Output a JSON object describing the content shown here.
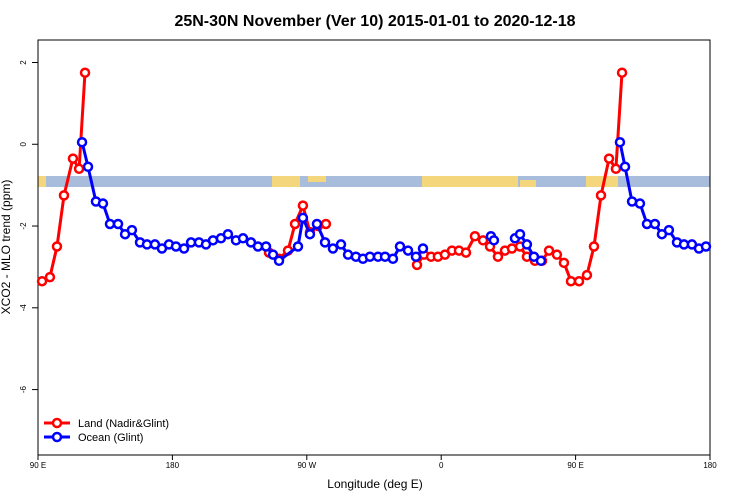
{
  "chart_data": {
    "type": "line",
    "title": "25N-30N November (Ver 10)   2015-01-01 to 2020-12-18",
    "x_label": "Longitude (deg E)",
    "y_label": "XCO2 - MLO trend (ppm)",
    "xlim": [
      90,
      540
    ],
    "ylim": [
      -7.6,
      2.55
    ],
    "xticks": [
      {
        "value": 90,
        "label": "90 E"
      },
      180,
      {
        "value": 270,
        "label": "90 W"
      },
      {
        "value": 360,
        "label": "0"
      },
      {
        "value": 450,
        "label": "90 E"
      },
      {
        "value": 540,
        "label": "180"
      }
    ],
    "yticks": [
      2,
      0,
      -2,
      -4,
      -6
    ],
    "legend": "bottom-left",
    "series": [
      {
        "name": "Land (Nadir&Glint)",
        "color": "#ff0000",
        "x": [
          92.7,
          98.0,
          102.7,
          107.4,
          113.4,
          117.5,
          121.5,
          null,
          244.7,
          251.4,
          257.4,
          262.1,
          267.4,
          272.1,
          277.5,
          282.8,
          null,
          343.8,
          348.5,
          353.2,
          357.8,
          362.5,
          367.2,
          371.9,
          376.6,
          382.6,
          388.0,
          392.7,
          398.0,
          402.7,
          407.4,
          412.8,
          417.4,
          422.8,
          427.5,
          432.2,
          437.5,
          442.2,
          446.9,
          452.3,
          457.6,
          462.3,
          467.0,
          472.4,
          477.0,
          481.1
        ],
        "values": [
          -3.35,
          -3.25,
          -2.5,
          -1.25,
          -0.35,
          -0.6,
          1.75,
          null,
          -2.65,
          -2.8,
          -2.6,
          -1.95,
          -1.5,
          -2.15,
          -2.0,
          -1.95,
          null,
          -2.95,
          -2.7,
          -2.75,
          -2.75,
          -2.7,
          -2.6,
          -2.6,
          -2.65,
          -2.25,
          -2.35,
          -2.5,
          -2.75,
          -2.6,
          -2.55,
          -2.5,
          -2.75,
          -2.85,
          -2.85,
          -2.6,
          -2.7,
          -2.9,
          -3.35,
          -3.35,
          -3.2,
          -2.5,
          -1.25,
          -0.35,
          -0.6,
          1.75
        ]
      },
      {
        "name": "Ocean (Glint)",
        "color": "#0000ff",
        "x": [
          119.5,
          123.5,
          128.8,
          133.5,
          138.2,
          143.6,
          148.3,
          152.9,
          158.3,
          163.0,
          168.3,
          173.0,
          177.7,
          182.4,
          187.8,
          192.5,
          197.8,
          202.5,
          207.2,
          212.5,
          217.2,
          222.6,
          227.3,
          232.6,
          237.3,
          242.7,
          247.4,
          251.4,
          264.1,
          267.4,
          272.1,
          276.8,
          282.2,
          287.5,
          292.9,
          297.6,
          302.9,
          307.6,
          312.3,
          317.7,
          322.4,
          327.7,
          332.4,
          337.8,
          343.1,
          347.8,
          null,
          393.3,
          395.3,
          null,
          409.4,
          412.8,
          417.4,
          422.1,
          426.8,
          null,
          479.7,
          483.1,
          487.8,
          493.1,
          497.8,
          503.1,
          507.8,
          512.5,
          517.9,
          522.6,
          527.9,
          532.6,
          537.3
        ],
        "values": [
          0.05,
          -0.55,
          -1.4,
          -1.45,
          -1.95,
          -1.95,
          -2.2,
          -2.1,
          -2.4,
          -2.45,
          -2.45,
          -2.55,
          -2.45,
          -2.5,
          -2.55,
          -2.4,
          -2.4,
          -2.45,
          -2.35,
          -2.3,
          -2.2,
          -2.35,
          -2.3,
          -2.4,
          -2.5,
          -2.5,
          -2.7,
          -2.85,
          -2.5,
          -1.8,
          -2.2,
          -1.95,
          -2.4,
          -2.55,
          -2.45,
          -2.7,
          -2.75,
          -2.8,
          -2.75,
          -2.75,
          -2.75,
          -2.8,
          -2.5,
          -2.6,
          -2.75,
          -2.55,
          null,
          -2.25,
          -2.35,
          null,
          -2.3,
          -2.2,
          -2.45,
          -2.75,
          -2.85,
          null,
          0.05,
          -0.55,
          -1.4,
          -1.45,
          -1.95,
          -1.95,
          -2.2,
          -2.1,
          -2.4,
          -2.45,
          -2.45,
          -2.55,
          -2.5
        ]
      }
    ]
  }
}
